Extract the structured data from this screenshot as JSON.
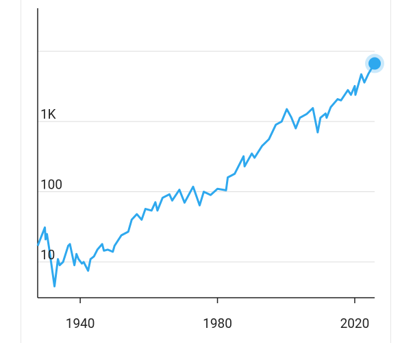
{
  "chart_data": {
    "type": "line",
    "log_y": true,
    "color": "#2ea8ee",
    "x": [
      1927.6,
      1929.7,
      1929.9,
      1930.3,
      1931,
      1932.5,
      1933.5,
      1934,
      1935,
      1936.5,
      1937,
      1938.3,
      1938.9,
      1939.5,
      1940.5,
      1941,
      1942.3,
      1943,
      1944,
      1945,
      1946.4,
      1946.9,
      1948,
      1949.5,
      1950,
      1952,
      1954,
      1955,
      1956.5,
      1957.9,
      1959,
      1960.8,
      1961.9,
      1962.5,
      1964,
      1966,
      1966.8,
      1968.9,
      1970.4,
      1972.9,
      1974.8,
      1976,
      1978,
      1980,
      1982.5,
      1983,
      1985,
      1987.6,
      1987.9,
      1990,
      1990.8,
      1993,
      1995,
      1997,
      1998.7,
      2000.2,
      2001.5,
      2002.8,
      2004,
      2006,
      2007.8,
      2009.2,
      2010,
      2011.5,
      2011.8,
      2013,
      2015,
      2016,
      2018,
      2018.9,
      2020,
      2020.2,
      2021.9,
      2022.8,
      2024,
      2025,
      2025.8
    ],
    "values": [
      17,
      31,
      21,
      25,
      15,
      4.5,
      11,
      9,
      10,
      17,
      18,
      9,
      13,
      11,
      9.5,
      10,
      7.5,
      11,
      12,
      15,
      18,
      14.5,
      15,
      14,
      17,
      24,
      27,
      40,
      48,
      40,
      57,
      54,
      71,
      54,
      82,
      92,
      75,
      107,
      70,
      118,
      64,
      100,
      90,
      110,
      105,
      160,
      180,
      320,
      230,
      350,
      305,
      450,
      560,
      900,
      1000,
      1500,
      1150,
      800,
      1130,
      1280,
      1550,
      700,
      1130,
      1300,
      1130,
      1600,
      2080,
      2000,
      2800,
      2400,
      3200,
      2400,
      4700,
      3600,
      4800,
      5800,
      6700
    ],
    "xlim": [
      1927.6,
      2025.8
    ],
    "xticks": [
      1940,
      1980,
      2020
    ],
    "ylim": [
      3.1,
      41000
    ],
    "yticks": [
      10,
      100,
      {
        "value": 1000,
        "label": "1K"
      }
    ],
    "ygrid": [
      10,
      100,
      1000,
      10000
    ],
    "grid": true
  }
}
